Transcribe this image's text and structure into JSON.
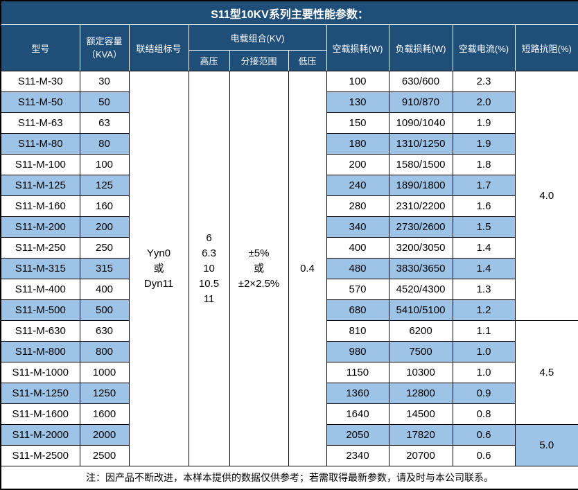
{
  "title": "S11型10KV系列主要性能参数：",
  "header": {
    "model": "型号",
    "capacity": "额定容量\n（KVA）",
    "connection": "联结组标号",
    "voltage_group": "电载组合(KV)",
    "high_voltage": "高压",
    "tap_range": "分接范围",
    "low_voltage": "低压",
    "no_load_loss": "空载损耗(W)",
    "load_loss": "负载损耗(W)",
    "no_load_current": "空载电流(%)",
    "impedance": "短路抗阻(%)"
  },
  "shared": {
    "connection": "Yyn0\n或\nDyn11",
    "high_voltage": "6\n6.3\n10\n10.5\n11",
    "tap_range": "±5%\n或\n±2×2.5%",
    "low_voltage": "0.4"
  },
  "rows": [
    {
      "model": "S11-M-30",
      "kva": "30",
      "no_load_loss": "100",
      "load_loss": "630/600",
      "no_load_current": "2.3"
    },
    {
      "model": "S11-M-50",
      "kva": "50",
      "no_load_loss": "130",
      "load_loss": "910/870",
      "no_load_current": "2.0"
    },
    {
      "model": "S11-M-63",
      "kva": "63",
      "no_load_loss": "150",
      "load_loss": "1090/1040",
      "no_load_current": "1.9"
    },
    {
      "model": "S11-M-80",
      "kva": "80",
      "no_load_loss": "180",
      "load_loss": "1310/1250",
      "no_load_current": "1.9"
    },
    {
      "model": "S11-M-100",
      "kva": "100",
      "no_load_loss": "200",
      "load_loss": "1580/1500",
      "no_load_current": "1.8"
    },
    {
      "model": "S11-M-125",
      "kva": "125",
      "no_load_loss": "240",
      "load_loss": "1890/1800",
      "no_load_current": "1.7"
    },
    {
      "model": "S11-M-160",
      "kva": "160",
      "no_load_loss": "280",
      "load_loss": "2310/2200",
      "no_load_current": "1.6"
    },
    {
      "model": "S11-M-200",
      "kva": "200",
      "no_load_loss": "340",
      "load_loss": "2730/2600",
      "no_load_current": "1.5"
    },
    {
      "model": "S11-M-250",
      "kva": "250",
      "no_load_loss": "400",
      "load_loss": "3200/3050",
      "no_load_current": "1.4"
    },
    {
      "model": "S11-M-315",
      "kva": "315",
      "no_load_loss": "480",
      "load_loss": "3830/3650",
      "no_load_current": "1.4"
    },
    {
      "model": "S11-M-400",
      "kva": "400",
      "no_load_loss": "570",
      "load_loss": "4520/4300",
      "no_load_current": "1.3"
    },
    {
      "model": "S11-M-500",
      "kva": "500",
      "no_load_loss": "680",
      "load_loss": "5410/5100",
      "no_load_current": "1.2"
    },
    {
      "model": "S11-M-630",
      "kva": "630",
      "no_load_loss": "810",
      "load_loss": "6200",
      "no_load_current": "1.1"
    },
    {
      "model": "S11-M-800",
      "kva": "800",
      "no_load_loss": "980",
      "load_loss": "7500",
      "no_load_current": "1.0"
    },
    {
      "model": "S11-M-1000",
      "kva": "1000",
      "no_load_loss": "1150",
      "load_loss": "10300",
      "no_load_current": "1.0"
    },
    {
      "model": "S11-M-1250",
      "kva": "1250",
      "no_load_loss": "1360",
      "load_loss": "12800",
      "no_load_current": "0.9"
    },
    {
      "model": "S11-M-1600",
      "kva": "1600",
      "no_load_loss": "1640",
      "load_loss": "14500",
      "no_load_current": "0.8"
    },
    {
      "model": "S11-M-2000",
      "kva": "2000",
      "no_load_loss": "2050",
      "load_loss": "17820",
      "no_load_current": "0.6"
    },
    {
      "model": "S11-M-2500",
      "kva": "2500",
      "no_load_loss": "2340",
      "load_loss": "20700",
      "no_load_current": "0.6"
    }
  ],
  "impedance_groups": [
    {
      "value": "4.0",
      "rowspan": 12
    },
    {
      "value": "4.5",
      "rowspan": 5
    },
    {
      "value": "5.0",
      "rowspan": 2
    }
  ],
  "note": "注：因产品不断改进，本样本提供的数据仅供参考；若需取得最新参数，请及时与本公司联系。",
  "colors": {
    "header_bg": "#1F4E79",
    "header_text": "#FFFFFF",
    "row_bg": "#FFFFFF",
    "row_alt_bg": "#9DC3E6",
    "border": "#000000",
    "body_text": "#000000"
  }
}
